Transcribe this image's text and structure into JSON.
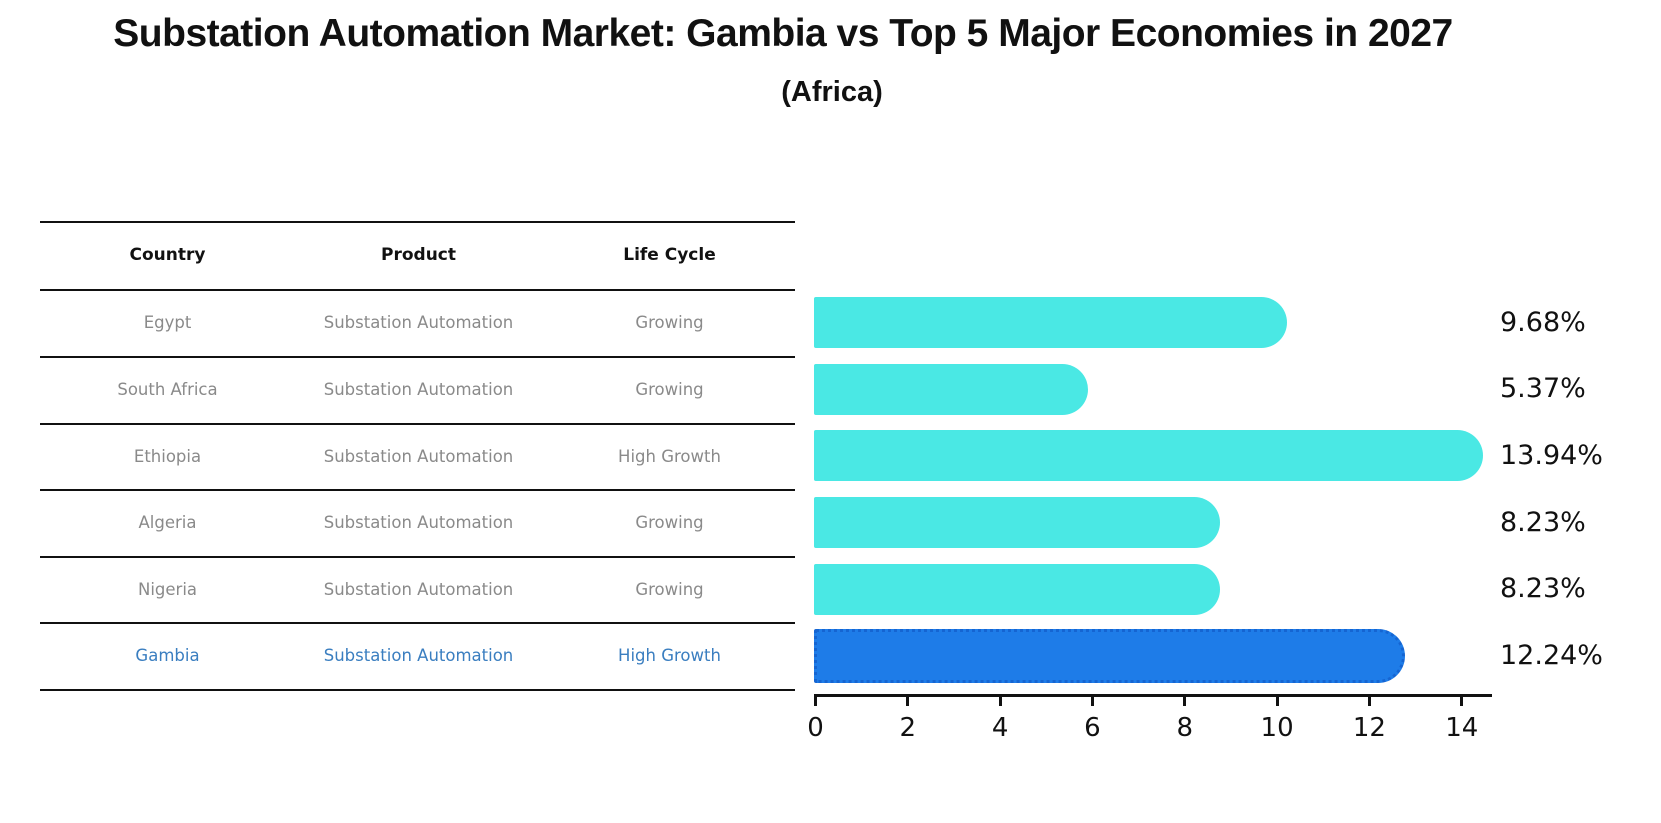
{
  "title": "Substation Automation Market: Gambia vs Top 5 Major Economies in 2027",
  "subtitle": "(Africa)",
  "table": {
    "headers": [
      "Country",
      "Product",
      "Life Cycle"
    ],
    "rows": [
      {
        "country": "Egypt",
        "product": "Substation Automation",
        "life_cycle": "Growing",
        "highlighted": false
      },
      {
        "country": "South Africa",
        "product": "Substation Automation",
        "life_cycle": "Growing",
        "highlighted": false
      },
      {
        "country": "Ethiopia",
        "product": "Substation Automation",
        "life_cycle": "High Growth",
        "highlighted": false
      },
      {
        "country": "Algeria",
        "product": "Substation Automation",
        "life_cycle": "Growing",
        "highlighted": false
      },
      {
        "country": "Nigeria",
        "product": "Substation Automation",
        "life_cycle": "Growing",
        "highlighted": false
      },
      {
        "country": "Gambia",
        "product": "Substation Automation",
        "life_cycle": "High Growth",
        "highlighted": true
      }
    ]
  },
  "chart_data": {
    "type": "bar",
    "orientation": "horizontal",
    "title": "Substation Automation Market: Gambia vs Top 5 Major Economies in 2027 (Africa)",
    "categories": [
      "Egypt",
      "South Africa",
      "Ethiopia",
      "Algeria",
      "Nigeria",
      "Gambia"
    ],
    "values": [
      9.68,
      5.37,
      13.94,
      8.23,
      8.23,
      12.24
    ],
    "value_labels": [
      "9.68%",
      "5.37%",
      "13.94%",
      "8.23%",
      "8.23%",
      "12.24%"
    ],
    "value_suffix": "%",
    "xlabel": "",
    "ylabel": "",
    "xticks": [
      0,
      2,
      4,
      6,
      8,
      10,
      12,
      14
    ],
    "xlim": [
      0,
      14.65
    ],
    "grid": false,
    "legend": false,
    "bar_color": "#4AE8E4",
    "highlight": {
      "category": "Gambia",
      "index": 5,
      "color": "#1E7CE8",
      "border": "dotted"
    }
  },
  "colors": {
    "background": "#ffffff",
    "text": "#111111",
    "muted_text": "#8a8a8a",
    "highlight_text": "#3a7ec0",
    "bar": "#4AE8E4",
    "highlight_bar": "#1E7CE8",
    "axis": "#111111"
  }
}
